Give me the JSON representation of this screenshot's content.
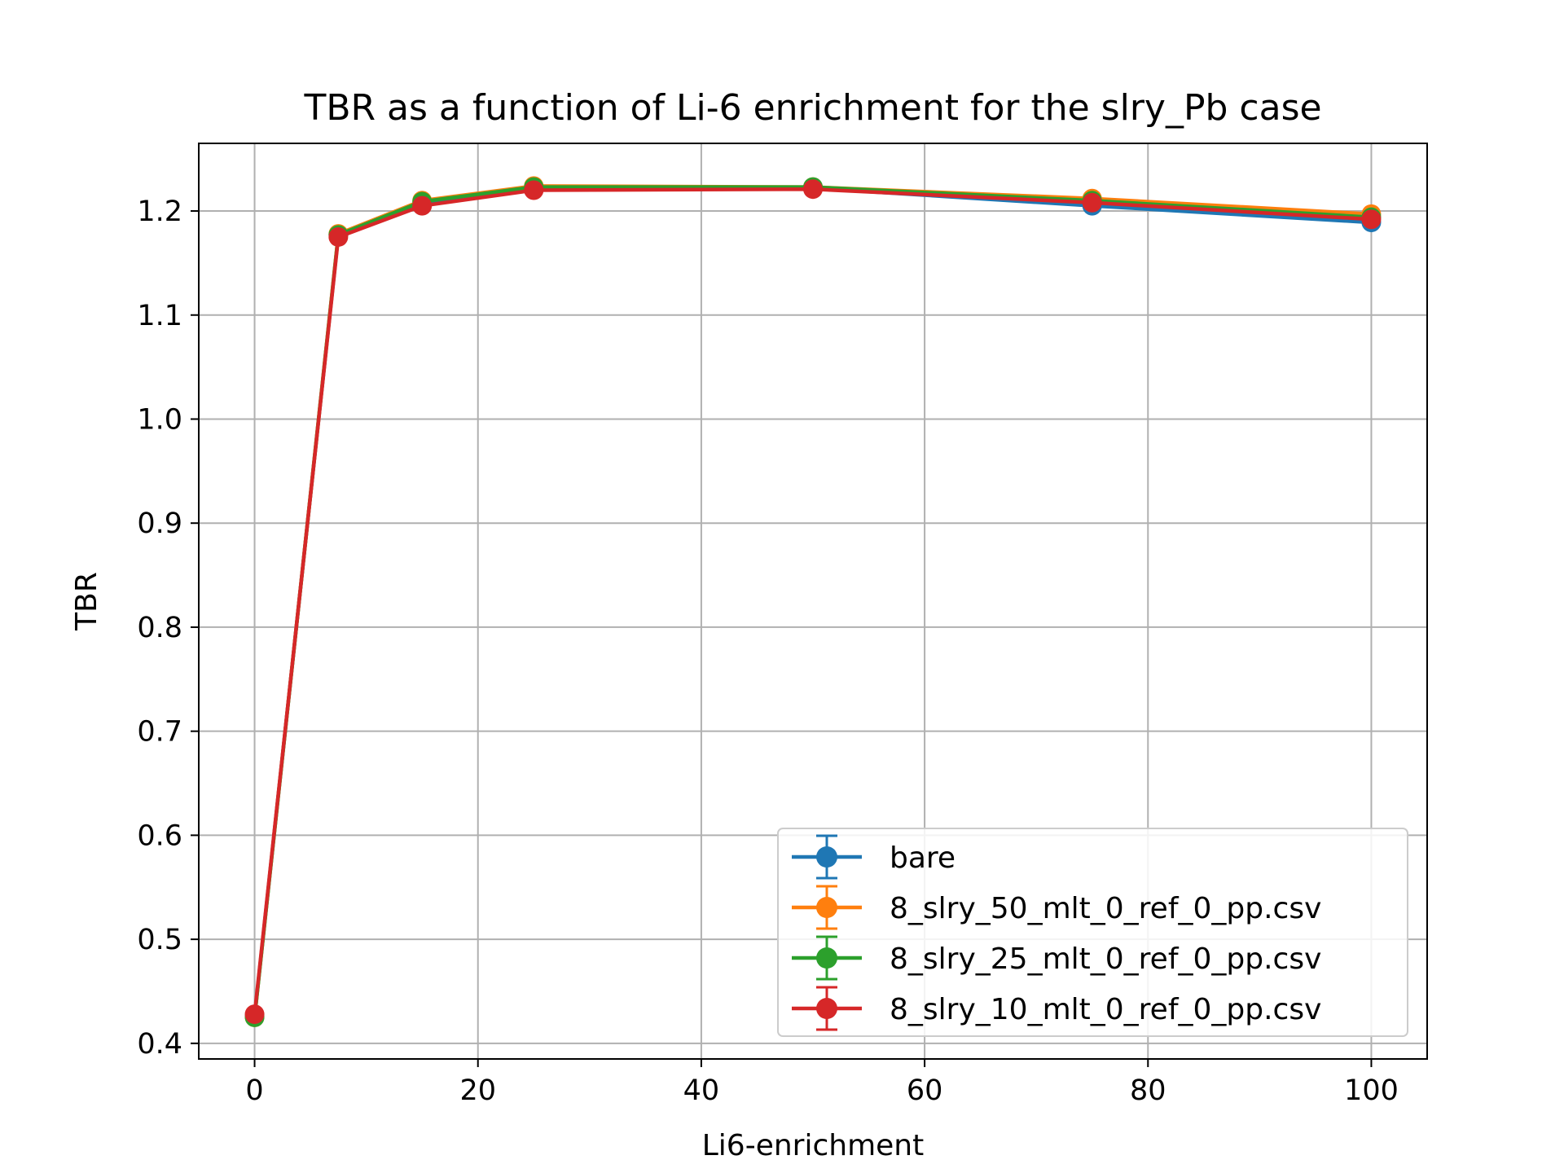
{
  "chart_data": {
    "type": "line",
    "title": "TBR as a function of Li-6 enrichment for the slry_Pb case",
    "xlabel": "Li6-enrichment",
    "ylabel": "TBR",
    "xlim": [
      -5,
      105
    ],
    "ylim": [
      0.385,
      1.265
    ],
    "xticks": [
      0,
      20,
      40,
      60,
      80,
      100
    ],
    "yticks": [
      0.4,
      0.5,
      0.6,
      0.7,
      0.8,
      0.9,
      1.0,
      1.1,
      1.2
    ],
    "ytick_labels": [
      "0.4",
      "0.5",
      "0.6",
      "0.7",
      "0.8",
      "0.9",
      "1.0",
      "1.1",
      "1.2"
    ],
    "grid": true,
    "legend_position": "lower-right",
    "x": [
      0,
      7.5,
      15,
      25,
      50,
      75,
      100
    ],
    "series": [
      {
        "name": "bare",
        "color": "#1f77b4",
        "values": [
          0.426,
          1.177,
          1.207,
          1.221,
          1.222,
          1.205,
          1.189
        ]
      },
      {
        "name": "8_slry_50_mlt_0_ref_0_pp.csv",
        "color": "#ff7f0e",
        "values": [
          0.425,
          1.178,
          1.21,
          1.224,
          1.223,
          1.212,
          1.197
        ]
      },
      {
        "name": "8_slry_25_mlt_0_ref_0_pp.csv",
        "color": "#2ca02c",
        "values": [
          0.425,
          1.177,
          1.209,
          1.223,
          1.223,
          1.21,
          1.194
        ]
      },
      {
        "name": "8_slry_10_mlt_0_ref_0_pp.csv",
        "color": "#d62728",
        "values": [
          0.428,
          1.175,
          1.205,
          1.22,
          1.221,
          1.208,
          1.192
        ]
      }
    ]
  }
}
